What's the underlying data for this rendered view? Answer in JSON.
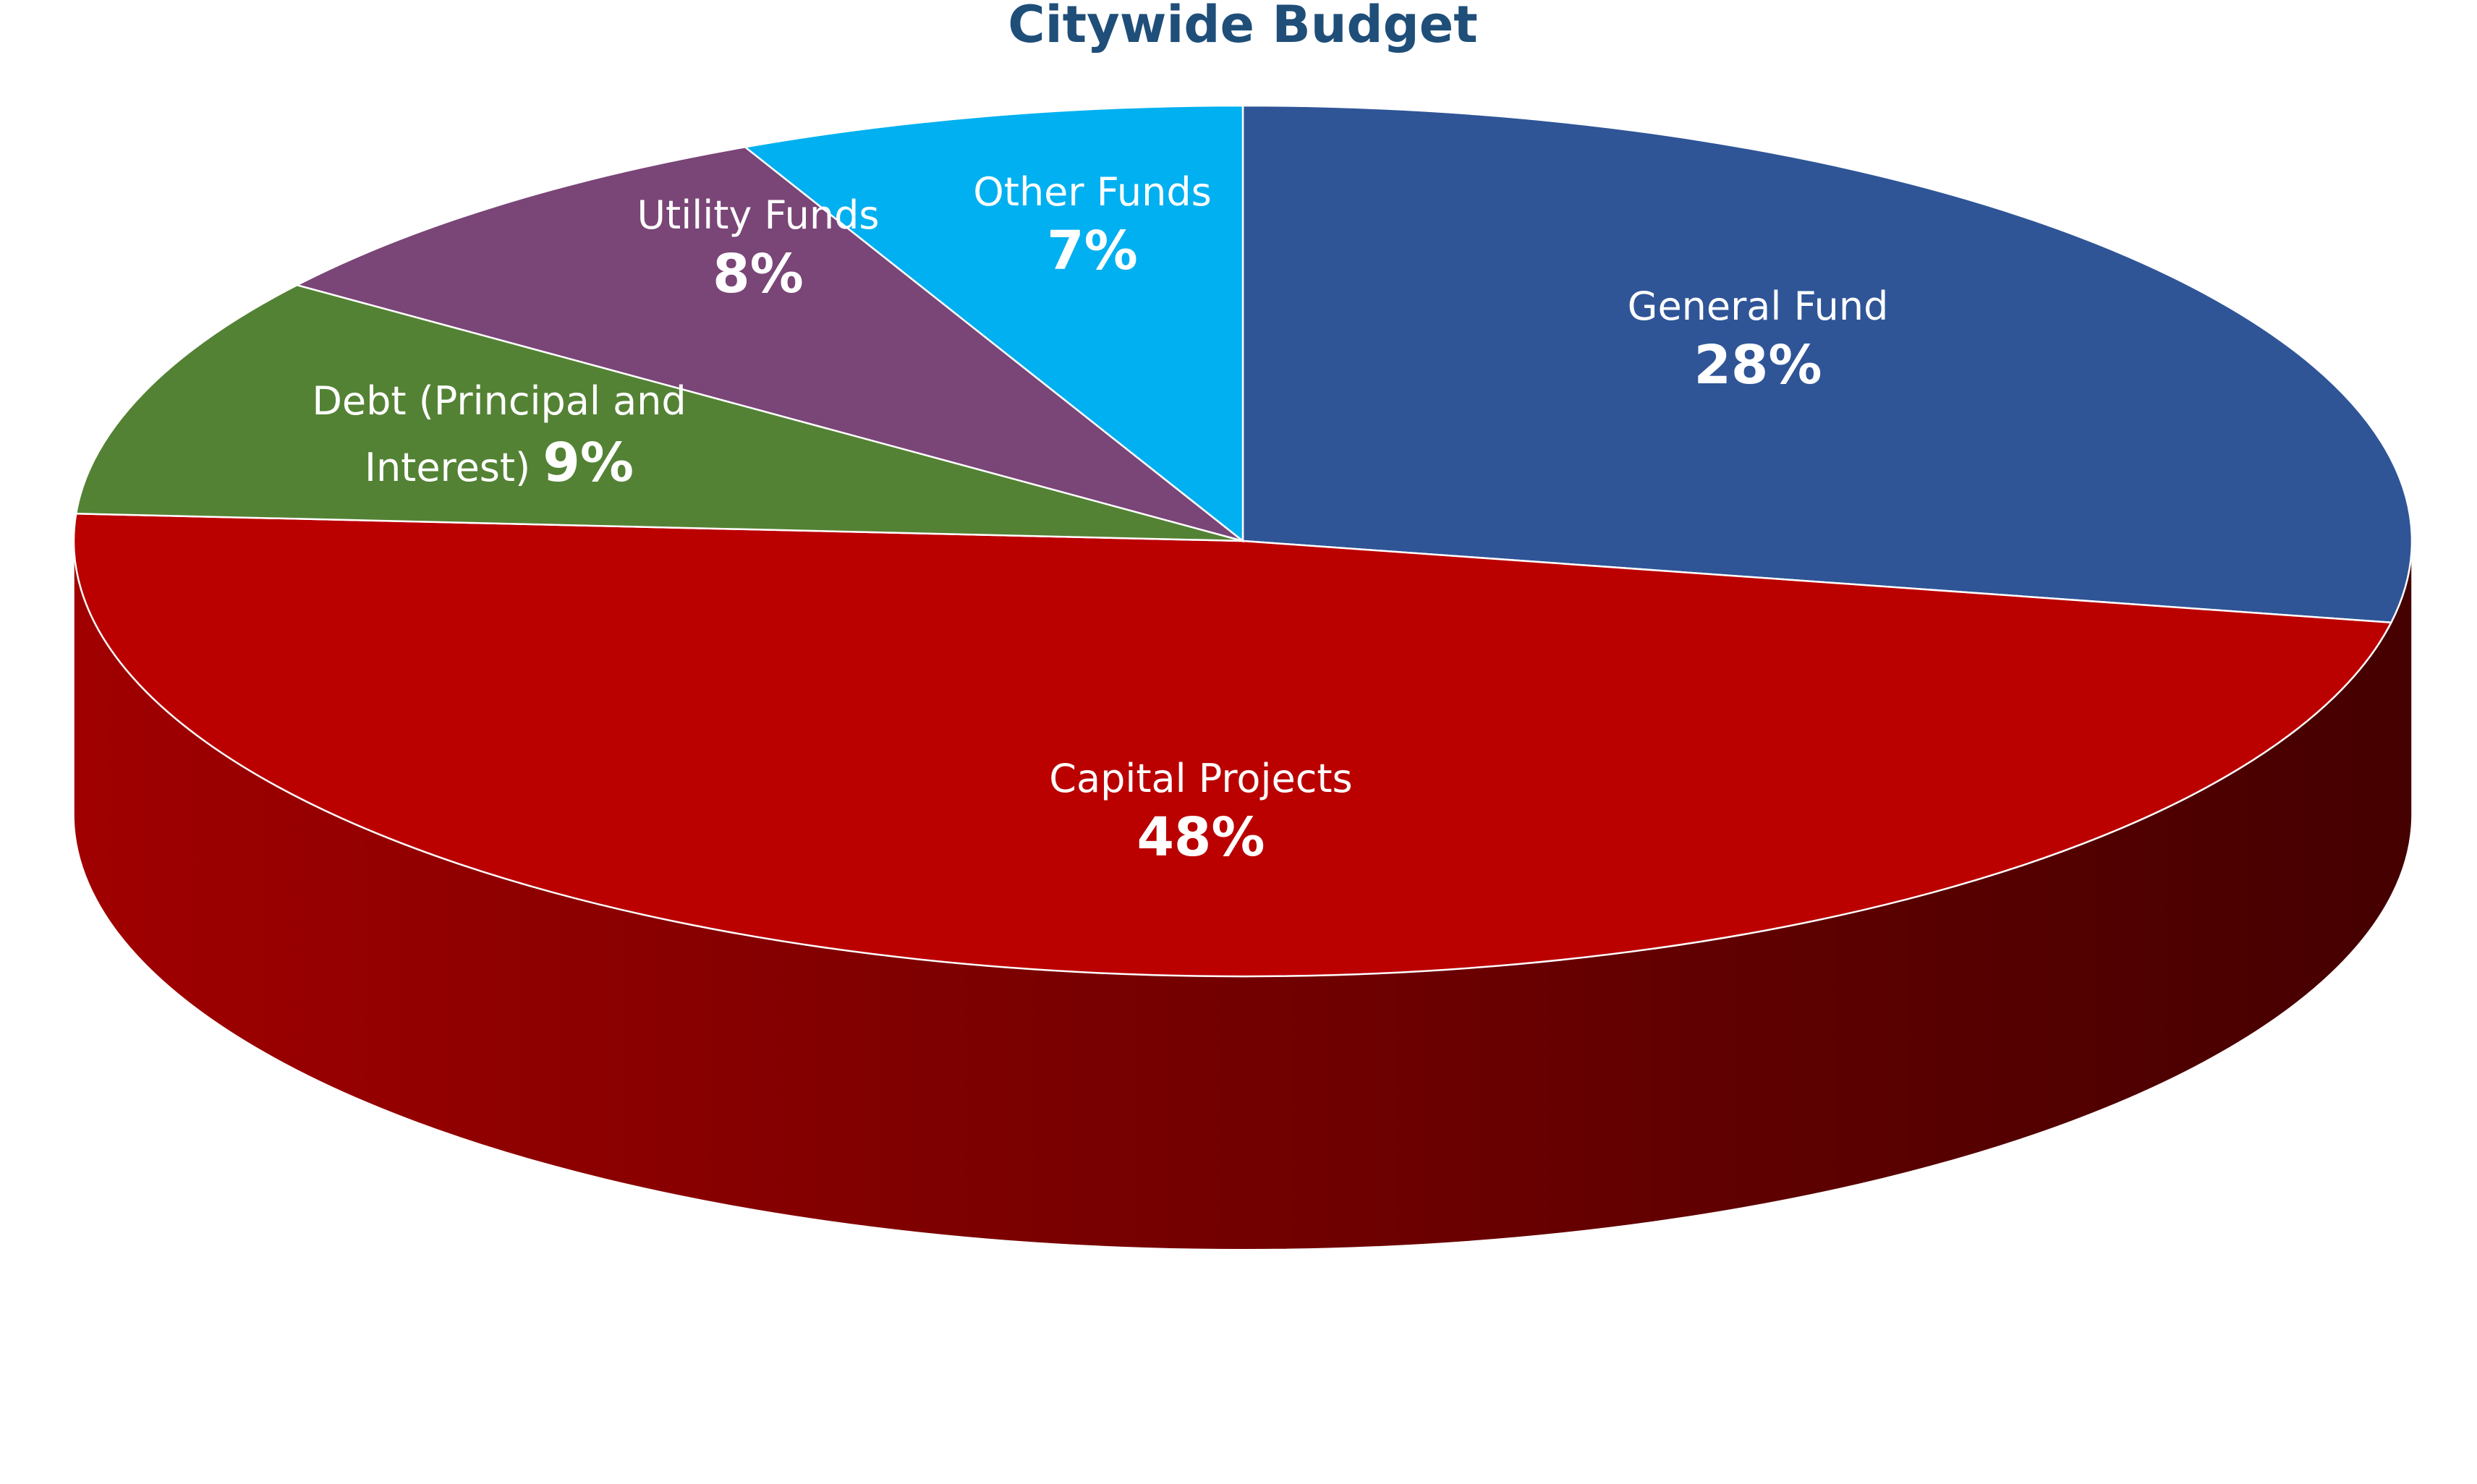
{
  "chart_data": {
    "type": "pie",
    "title": "Citywide Budget",
    "title_color": "#1f4e79",
    "style": "3d-tilted",
    "slices": [
      {
        "name": "General Fund",
        "label_lines": [
          "General Fund"
        ],
        "value": 28,
        "value_label": "28%",
        "color": "#2f5597",
        "side_color": "#1f3864"
      },
      {
        "name": "Capital Projects",
        "label_lines": [
          "Capital Projects"
        ],
        "value": 48,
        "value_label": "48%",
        "color": "#bb0000",
        "side_color": "#8a0000"
      },
      {
        "name": "Debt (Principal and Interest)",
        "label_lines": [
          "Debt (Principal and",
          "Interest)"
        ],
        "value": 9,
        "value_label": "9%",
        "color": "#548235",
        "side_color": "#3b5c24"
      },
      {
        "name": "Utility Funds",
        "label_lines": [
          "Utility Funds"
        ],
        "value": 8,
        "value_label": "8%",
        "color": "#7a4577",
        "side_color": "#552f53"
      },
      {
        "name": "Other Funds",
        "label_lines": [
          "Other Funds"
        ],
        "value": 7,
        "value_label": "7%",
        "color": "#00b0f0",
        "side_color": "#0080b0"
      }
    ]
  }
}
